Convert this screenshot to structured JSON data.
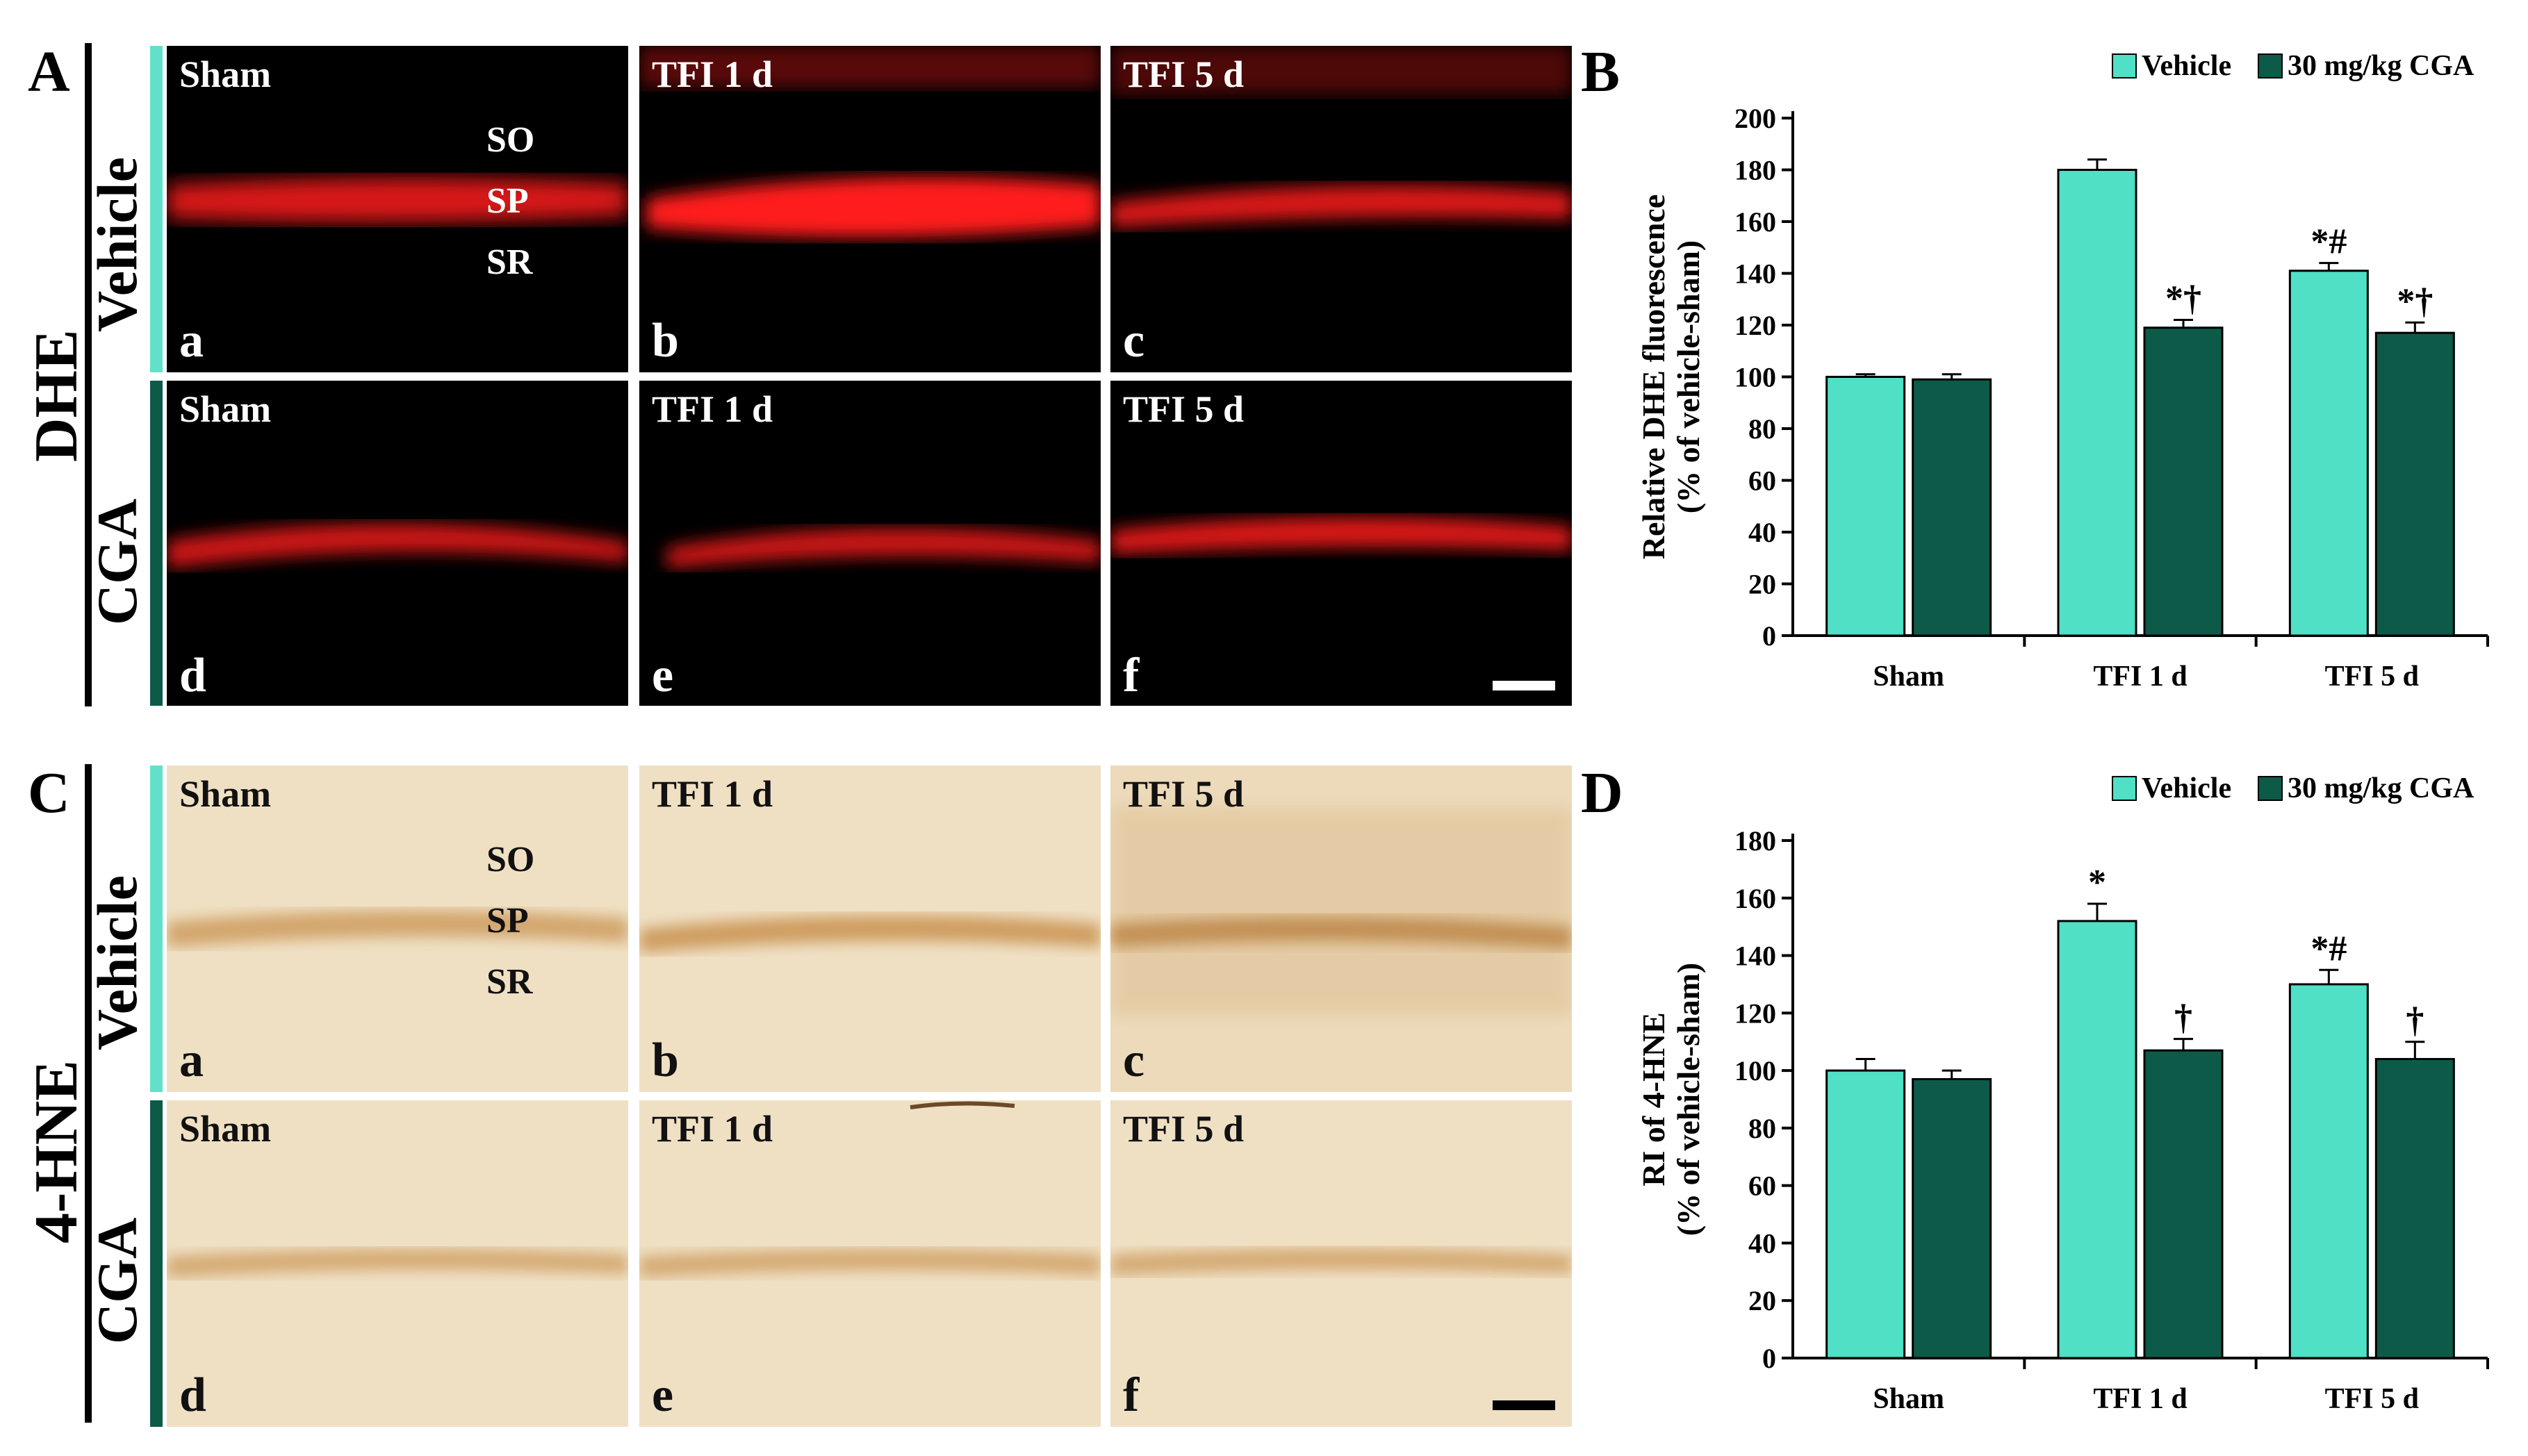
{
  "panels": {
    "A": "A",
    "B": "B",
    "C": "C",
    "D": "D"
  },
  "stains": {
    "top": "DHE",
    "bottom": "4-HNE"
  },
  "rows": {
    "vehicle": "Vehicle",
    "cga": "CGA"
  },
  "image_labels": {
    "columns": [
      "Sham",
      "TFI 1 d",
      "TFI 5 d"
    ],
    "letters_top": [
      "a",
      "b",
      "c"
    ],
    "letters_bottom": [
      "d",
      "e",
      "f"
    ],
    "layers": [
      "SO",
      "SP",
      "SR"
    ]
  },
  "colors": {
    "vehicle": "#4fe0c6",
    "cga": "#0d5a48",
    "vehicle_row_bar": "#63e0c9",
    "cga_row_bar": "#0d5a48",
    "dhe_signal": "#ff1a1a",
    "ihc_background": "#efe0c4",
    "ihc_band": "#c9924f"
  },
  "chart_data": [
    {
      "panel": "B",
      "type": "bar",
      "ylabel": [
        "Relative DHE fluorescence",
        "(% of vehicle-sham)"
      ],
      "xlabel": "",
      "categories": [
        "Sham",
        "TFI 1 d",
        "TFI 5 d"
      ],
      "series": [
        {
          "name": "Vehicle",
          "values": [
            100,
            180,
            141
          ],
          "errors": [
            1,
            4,
            3
          ]
        },
        {
          "name": "30 mg/kg CGA",
          "values": [
            99,
            119,
            117
          ],
          "errors": [
            2,
            3,
            4
          ]
        }
      ],
      "annotations": [
        {
          "category": 1,
          "series": 1,
          "text": "*†"
        },
        {
          "category": 2,
          "series": 0,
          "text": "*#"
        },
        {
          "category": 2,
          "series": 1,
          "text": "*†"
        }
      ],
      "ylim": [
        0,
        200
      ],
      "yticks": [
        0,
        20,
        40,
        60,
        80,
        100,
        120,
        140,
        160,
        180,
        200
      ],
      "grid": false,
      "legend": "top-right"
    },
    {
      "panel": "D",
      "type": "bar",
      "ylabel": [
        "RI of 4-HNE",
        "(% of vehicle-sham)"
      ],
      "xlabel": "",
      "categories": [
        "Sham",
        "TFI 1 d",
        "TFI 5 d"
      ],
      "series": [
        {
          "name": "Vehicle",
          "values": [
            100,
            152,
            130
          ],
          "errors": [
            4,
            6,
            5
          ]
        },
        {
          "name": "30 mg/kg CGA",
          "values": [
            97,
            107,
            104
          ],
          "errors": [
            3,
            4,
            6
          ]
        }
      ],
      "annotations": [
        {
          "category": 1,
          "series": 0,
          "text": "*"
        },
        {
          "category": 1,
          "series": 1,
          "text": "†"
        },
        {
          "category": 2,
          "series": 0,
          "text": "*#"
        },
        {
          "category": 2,
          "series": 1,
          "text": "†"
        }
      ],
      "ylim": [
        0,
        180
      ],
      "yticks": [
        0,
        20,
        40,
        60,
        80,
        100,
        120,
        140,
        160,
        180
      ],
      "grid": false,
      "legend": "top-right"
    }
  ]
}
